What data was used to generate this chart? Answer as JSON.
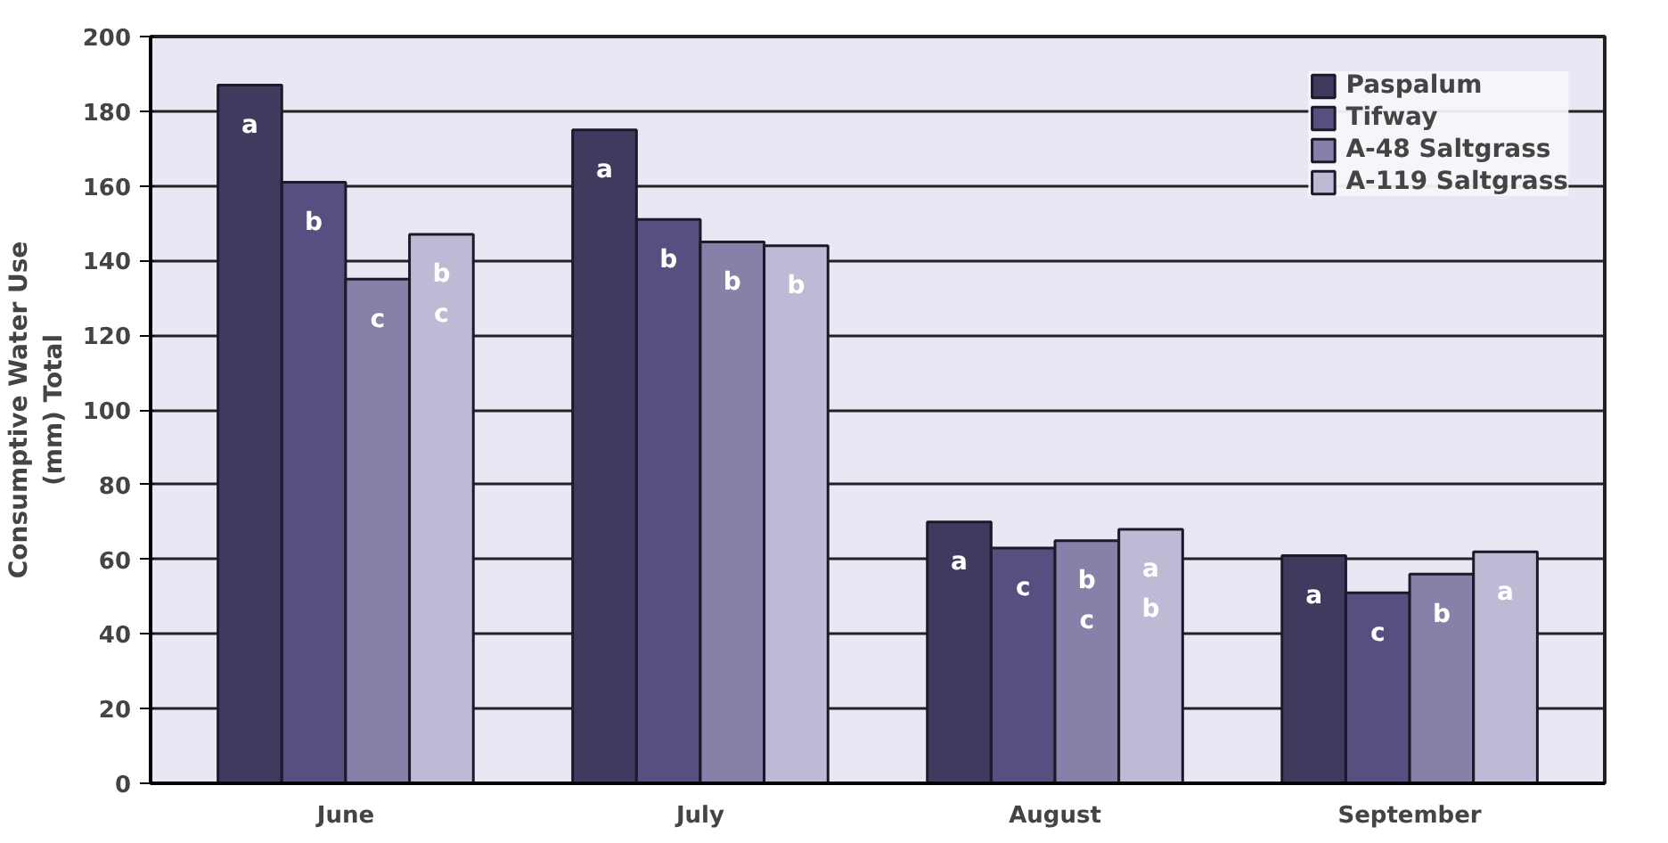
{
  "chart_data": {
    "type": "bar",
    "ylabel": "Consumptive Water Use\n(mm) Total",
    "categories": [
      "June",
      "July",
      "August",
      "September"
    ],
    "series": [
      {
        "name": "Paspalum",
        "color": "#3f3a5e",
        "values": [
          187,
          175,
          70,
          61
        ],
        "value_labels": [
          "a",
          "a",
          "a",
          "a"
        ]
      },
      {
        "name": "Tifway",
        "color": "#55507f",
        "values": [
          161,
          151,
          63,
          51
        ],
        "value_labels": [
          "b",
          "b",
          "c",
          "c"
        ]
      },
      {
        "name": "A-48 Saltgrass",
        "color": "#8581a8",
        "values": [
          135,
          145,
          65,
          56
        ],
        "value_labels": [
          "c",
          "b",
          "b\nc",
          "b"
        ]
      },
      {
        "name": "A-119 Saltgrass",
        "color": "#bdbad6",
        "values": [
          147,
          144,
          68,
          62
        ],
        "value_labels": [
          "b\nc",
          "b",
          "a\nb",
          "a"
        ]
      }
    ],
    "ylim": [
      0,
      200
    ],
    "yticks": [
      0,
      20,
      40,
      60,
      80,
      100,
      120,
      140,
      160,
      180,
      200
    ],
    "grid": "y",
    "legend": "top right"
  }
}
